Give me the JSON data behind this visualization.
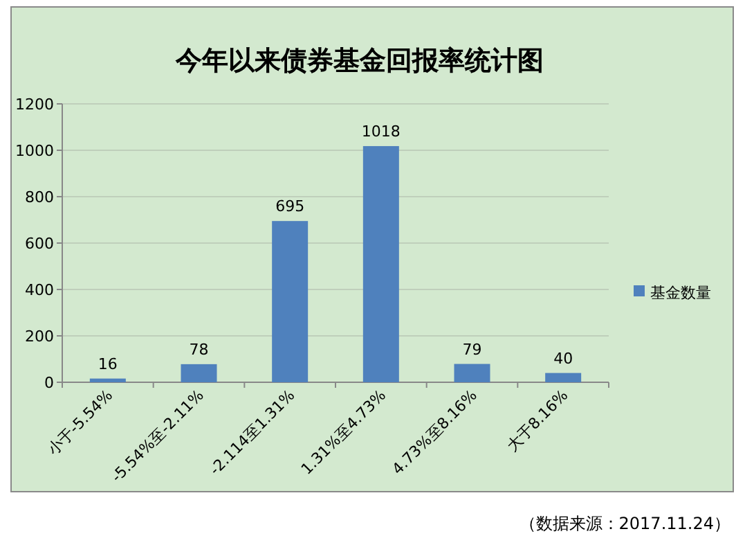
{
  "chart_data": {
    "type": "bar",
    "title": "今年以来债券基金回报率统计图",
    "categories": [
      "小于-5.54%",
      "-5.54%至-2.11%",
      "-2.114至1.31%",
      "1.31%至4.73%",
      "4.73%至8.16%",
      "大于8.16%"
    ],
    "series": [
      {
        "name": "基金数量",
        "color": "#4f81bd",
        "values": [
          16,
          78,
          695,
          1018,
          79,
          40
        ]
      }
    ],
    "ylim": [
      0,
      1200
    ],
    "yticks": [
      0,
      200,
      400,
      600,
      800,
      1000,
      1200
    ],
    "grid": "y",
    "legend": "right",
    "data_labels": true,
    "annotations": [
      "（数据来源：2017.11.24）"
    ]
  }
}
